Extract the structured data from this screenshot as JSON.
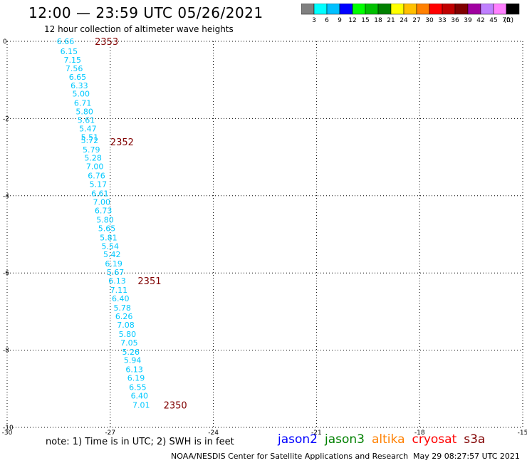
{
  "header": {
    "title": "12:00 — 23:59 UTC 05/26/2021",
    "subtitle": "12 hour collection of altimeter wave heights"
  },
  "scale": {
    "colors": [
      "#808080",
      "#00ffff",
      "#00c0ff",
      "#0000ff",
      "#00ff00",
      "#00c000",
      "#008000",
      "#ffff00",
      "#ffc000",
      "#ff8000",
      "#ff0000",
      "#c00000",
      "#800000",
      "#a000a0",
      "#c080ff",
      "#ff80ff",
      "#000000"
    ],
    "labels": [
      "3",
      "6",
      "9",
      "12",
      "15",
      "18",
      "21",
      "24",
      "27",
      "30",
      "33",
      "36",
      "39",
      "42",
      "45",
      "70"
    ],
    "unit": "(ft)"
  },
  "footer": {
    "note": "note:  1) Time is in UTC; 2) SWH is in feet",
    "satellites": [
      {
        "name": "jason2",
        "color": "#0000ff"
      },
      {
        "name": "jason3",
        "color": "#008000"
      },
      {
        "name": "altika",
        "color": "#ff8000"
      },
      {
        "name": "cryosat",
        "color": "#ff0000"
      },
      {
        "name": "s3a",
        "color": "#800000"
      }
    ],
    "credit": "NOAA/NESDIS Center for Satellite Applications and Research",
    "timestamp": "May 29 08:27:57 UTC 2021"
  },
  "chart_data": {
    "type": "scatter",
    "xlim": [
      -30,
      -15
    ],
    "ylim": [
      -10,
      0
    ],
    "x_ticks": [
      -30,
      -27,
      -24,
      -21,
      -18,
      -15
    ],
    "y_ticks": [
      0,
      -2,
      -4,
      -6,
      -8,
      -10
    ],
    "grid": true,
    "text_color": "#00c8ff",
    "time_color": "#800000",
    "points": [
      {
        "x": -28.3,
        "y": 0.0,
        "v": "6.66"
      },
      {
        "x": -28.2,
        "y": -0.26,
        "v": "6.15"
      },
      {
        "x": -28.1,
        "y": -0.48,
        "v": "7.15"
      },
      {
        "x": -28.05,
        "y": -0.7,
        "v": "7.56"
      },
      {
        "x": -27.95,
        "y": -0.92,
        "v": "6.65"
      },
      {
        "x": -27.9,
        "y": -1.14,
        "v": "6.33"
      },
      {
        "x": -27.85,
        "y": -1.36,
        "v": "5.00"
      },
      {
        "x": -27.8,
        "y": -1.6,
        "v": "6.71"
      },
      {
        "x": -27.75,
        "y": -1.82,
        "v": "5.80"
      },
      {
        "x": -27.7,
        "y": -2.04,
        "v": "5.61"
      },
      {
        "x": -27.65,
        "y": -2.26,
        "v": "5.47"
      },
      {
        "x": -27.6,
        "y": -2.48,
        "v": "5.51"
      },
      {
        "x": -27.6,
        "y": -2.56,
        "v": "5.72"
      },
      {
        "x": -27.55,
        "y": -2.8,
        "v": "5.79"
      },
      {
        "x": -27.5,
        "y": -3.02,
        "v": "5.28"
      },
      {
        "x": -27.45,
        "y": -3.24,
        "v": "7.00"
      },
      {
        "x": -27.4,
        "y": -3.48,
        "v": "6.76"
      },
      {
        "x": -27.35,
        "y": -3.7,
        "v": "5.17"
      },
      {
        "x": -27.3,
        "y": -3.94,
        "v": "6.61"
      },
      {
        "x": -27.25,
        "y": -4.16,
        "v": "7.00"
      },
      {
        "x": -27.2,
        "y": -4.38,
        "v": "6.73"
      },
      {
        "x": -27.15,
        "y": -4.62,
        "v": "5.80"
      },
      {
        "x": -27.1,
        "y": -4.84,
        "v": "5.65"
      },
      {
        "x": -27.05,
        "y": -5.08,
        "v": "5.81"
      },
      {
        "x": -27.0,
        "y": -5.3,
        "v": "5.54"
      },
      {
        "x": -26.95,
        "y": -5.52,
        "v": "5.42"
      },
      {
        "x": -26.9,
        "y": -5.76,
        "v": "6.19"
      },
      {
        "x": -26.85,
        "y": -5.98,
        "v": "5.67"
      },
      {
        "x": -26.8,
        "y": -6.2,
        "v": "6.13"
      },
      {
        "x": -26.75,
        "y": -6.44,
        "v": "7.11"
      },
      {
        "x": -26.7,
        "y": -6.66,
        "v": "6.40"
      },
      {
        "x": -26.65,
        "y": -6.9,
        "v": "5.78"
      },
      {
        "x": -26.6,
        "y": -7.12,
        "v": "6.26"
      },
      {
        "x": -26.55,
        "y": -7.34,
        "v": "7.08"
      },
      {
        "x": -26.5,
        "y": -7.58,
        "v": "5.80"
      },
      {
        "x": -26.45,
        "y": -7.8,
        "v": "7.05"
      },
      {
        "x": -26.4,
        "y": -8.04,
        "v": "5.26"
      },
      {
        "x": -26.35,
        "y": -8.26,
        "v": "5.94"
      },
      {
        "x": -26.3,
        "y": -8.5,
        "v": "6.13"
      },
      {
        "x": -26.25,
        "y": -8.72,
        "v": "6.19"
      },
      {
        "x": -26.2,
        "y": -8.96,
        "v": "6.55"
      },
      {
        "x": -26.15,
        "y": -9.18,
        "v": "6.40"
      },
      {
        "x": -26.1,
        "y": -9.42,
        "v": "7.01"
      }
    ],
    "time_labels": [
      {
        "x": -27.45,
        "y": 0.0,
        "t": "2353"
      },
      {
        "x": -27.0,
        "y": -2.6,
        "t": "2352"
      },
      {
        "x": -26.2,
        "y": -6.2,
        "t": "2351"
      },
      {
        "x": -25.45,
        "y": -9.42,
        "t": "2350"
      }
    ]
  }
}
